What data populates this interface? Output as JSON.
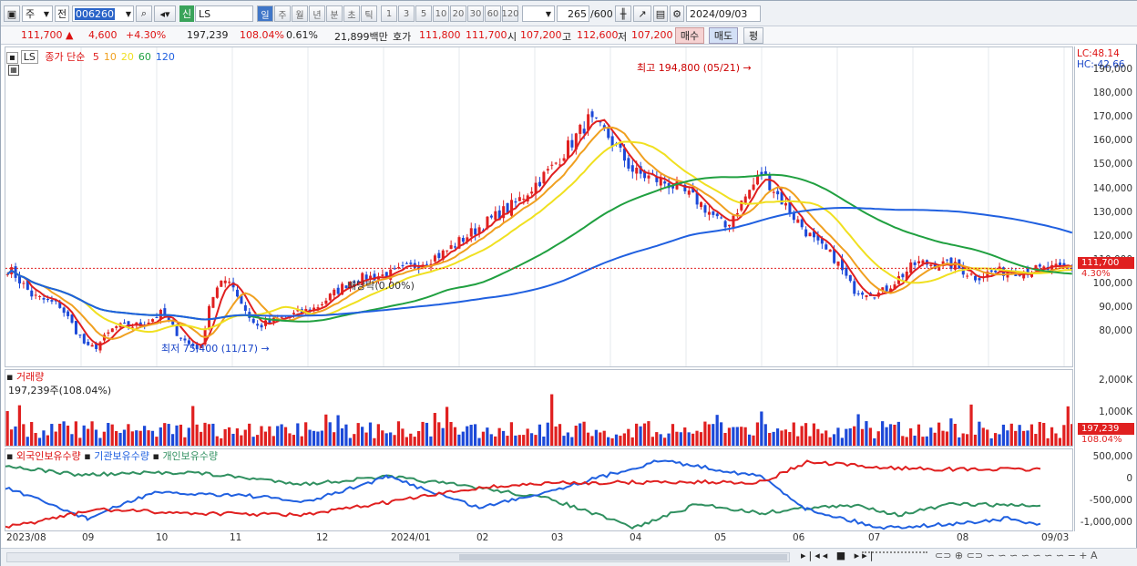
{
  "toolbar": {
    "period_value": "주",
    "type_value": "전",
    "code": "006260",
    "credit_badge": "신",
    "name": "LS",
    "periods": [
      "일",
      "주",
      "월",
      "년",
      "분",
      "초",
      "틱"
    ],
    "minutes": [
      "1",
      "3",
      "5",
      "10",
      "20",
      "30",
      "60",
      "120"
    ],
    "count": "265",
    "count_max": "/600",
    "date": "2024/09/03"
  },
  "quote": {
    "price": "111,700",
    "change": "4,600",
    "change_pct": "+4.30%",
    "volume": "197,239",
    "vol_ratio": "108.04%",
    "turnover": "0.61%",
    "amount": "21,899백만",
    "ask_label": "호가",
    "ask": "111,800",
    "bid": "111,700",
    "open_label": "시",
    "open": "107,200",
    "high_label": "고",
    "high": "112,600",
    "low_label": "저",
    "low": "107,200",
    "buy_btn": "매수",
    "sell_btn": "매도",
    "avg_btn": "평"
  },
  "price_pane": {
    "legend_code": "LS",
    "legend_label": "종가 단순",
    "ma_labels": [
      "5",
      "10",
      "20",
      "60",
      "120"
    ],
    "ma_colors": [
      "#e02020",
      "#f0a020",
      "#f0e020",
      "#20a040",
      "#2060e0"
    ],
    "lc": "LC:48.14",
    "hc": "HC:-42.66",
    "annotations": {
      "high": "최고 194,800 (05/21)",
      "low": "최저 75,400 (11/17)",
      "dividend": "배당락(0.00%)"
    },
    "y_ticks": [
      "190,000",
      "180,000",
      "170,000",
      "160,000",
      "150,000",
      "140,000",
      "130,000",
      "120,000",
      "110,000",
      "100,000",
      "90,000",
      "80,000"
    ],
    "price_tag": "111,700",
    "pct_tag": "4.30%"
  },
  "volume_pane": {
    "title": "거래량",
    "value": "197,239주(108.04%)",
    "y_ticks": [
      "2,000K",
      "1,000K"
    ],
    "tag": "197,239",
    "pct_tag": "108.04%"
  },
  "holder_pane": {
    "series": [
      "외국인보유수량",
      "기관보유수량",
      "개인보유수량"
    ],
    "y_ticks": [
      "500,000",
      "0",
      "-500,000",
      "-1,000,000"
    ]
  },
  "x_labels": [
    "2023/08",
    "09",
    "10",
    "11",
    "12",
    "2024/01",
    "02",
    "03",
    "04",
    "05",
    "06",
    "07",
    "08",
    "09/03"
  ],
  "colors": {
    "up": "#e02020",
    "down": "#1c49d8",
    "foreign": "#e02020",
    "institution": "#2060e0",
    "individual": "#309060"
  }
}
